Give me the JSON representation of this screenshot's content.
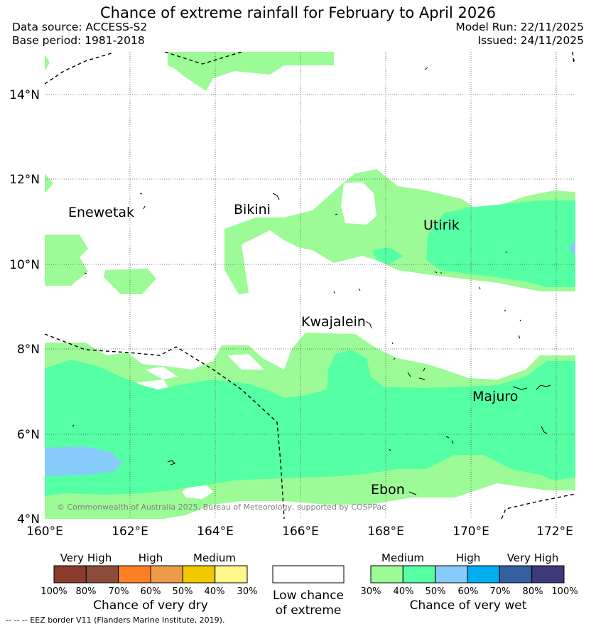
{
  "title": "Chance of extreme rainfall for February to April 2026",
  "header": {
    "data_source": "Data source: ACCESS-S2",
    "base_period": "Base period: 1981-2018",
    "model_run": "Model Run: 22/11/2025",
    "issued": "Issued: 24/11/2025"
  },
  "map": {
    "lat_labels": [
      "14°N",
      "12°N",
      "10°N",
      "8°N",
      "6°N",
      "4°N"
    ],
    "lon_labels": [
      "160°E",
      "162°E",
      "164°E",
      "166°E",
      "168°E",
      "170°E",
      "172°E"
    ],
    "places": {
      "enewetak": "Enewetak",
      "bikini": "Bikini",
      "utirik": "Utirik",
      "kwajalein": "Kwajalein",
      "majuro": "Majuro",
      "ebon": "Ebon"
    },
    "copyright": "© Commonwealth of Australia 2025, Bureau of Meteorology, supported by COSPPac"
  },
  "legend": {
    "dry": {
      "group_labels": [
        "Very High",
        "High",
        "Medium"
      ],
      "ticks": [
        "100%",
        "80%",
        "70%",
        "60%",
        "50%",
        "40%",
        "30%"
      ],
      "colors": [
        "#8b3a2e",
        "#8b4c3a",
        "#ff7f27",
        "#eb9b4a",
        "#f0c800",
        "#fff68c"
      ],
      "caption": "Chance of very dry"
    },
    "neutral": {
      "caption_line1": "Low chance",
      "caption_line2": "of extreme",
      "color": "#ffffff"
    },
    "wet": {
      "group_labels": [
        "Medium",
        "High",
        "Very High"
      ],
      "ticks": [
        "30%",
        "40%",
        "50%",
        "60%",
        "70%",
        "80%",
        "100%"
      ],
      "colors": [
        "#9cfb96",
        "#55ffa4",
        "#87cbfa",
        "#00adef",
        "#3360a0",
        "#3c3a78"
      ],
      "caption": "Chance of very wet"
    }
  },
  "footnote": "--  --  -- EEZ border V11 (Flanders Marine Institute, 2019)."
}
